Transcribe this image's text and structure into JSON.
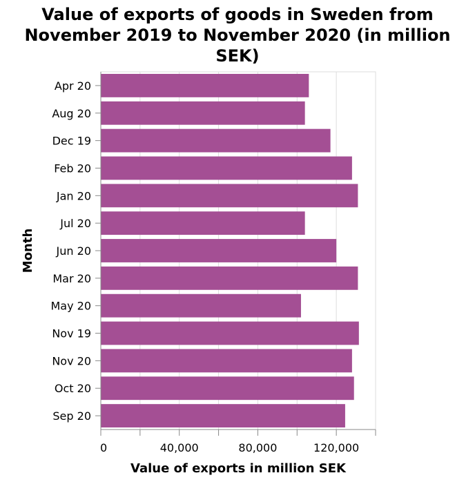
{
  "chart_data": {
    "type": "bar",
    "orientation": "horizontal",
    "title_lines": [
      "Value of exports of goods in Sweden from",
      "November 2019 to November 2020 (in million",
      "SEK)"
    ],
    "xlabel": "Value of exports in million SEK",
    "ylabel": "Month",
    "xlim": [
      0,
      140000
    ],
    "xticks": [
      0,
      40000,
      80000,
      120000
    ],
    "xtick_labels": [
      "0",
      "40,000",
      "80,000",
      "120,000"
    ],
    "grid": true,
    "bar_color": "#a44f94",
    "categories": [
      "Apr 20",
      "Aug 20",
      "Dec 19",
      "Feb 20",
      "Jan 20",
      "Jul 20",
      "Jun 20",
      "Mar 20",
      "May 20",
      "Nov 19",
      "Nov 20",
      "Oct 20",
      "Sep 20"
    ],
    "values": [
      106000,
      104000,
      117000,
      128000,
      131000,
      104000,
      120000,
      131000,
      102000,
      131500,
      128000,
      129000,
      124500
    ]
  }
}
